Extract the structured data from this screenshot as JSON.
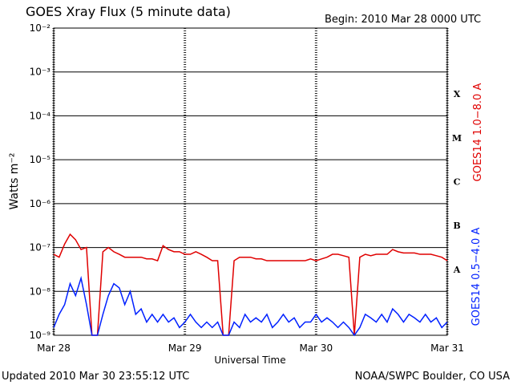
{
  "chart_data": {
    "type": "line",
    "title": "GOES Xray Flux (5 minute data)",
    "subtitle": "Begin:  2010 Mar 28 0000 UTC",
    "x_label": "Universal Time",
    "y_label": "Watts m⁻²",
    "footer_left": "Updated 2010 Mar 30 23:55:12 UTC",
    "footer_right": "NOAA/SWPC Boulder, CO USA",
    "flare_classes": [
      "A",
      "B",
      "C",
      "M",
      "X"
    ],
    "log_y": true,
    "grid": true,
    "xlim": [
      0,
      72
    ],
    "xticks": [
      {
        "value": 0,
        "label": "Mar 28"
      },
      {
        "value": 24,
        "label": "Mar 29"
      },
      {
        "value": 48,
        "label": "Mar 30"
      },
      {
        "value": 72,
        "label": "Mar 31"
      }
    ],
    "ylim": [
      1e-09,
      0.01
    ],
    "yticks": [
      {
        "value": 1e-09,
        "label": "10⁻⁹"
      },
      {
        "value": 1e-08,
        "label": "10⁻⁸"
      },
      {
        "value": 1e-07,
        "label": "10⁻⁷"
      },
      {
        "value": 1e-06,
        "label": "10⁻⁶"
      },
      {
        "value": 1e-05,
        "label": "10⁻⁵"
      },
      {
        "value": 0.0001,
        "label": "10⁻⁴"
      },
      {
        "value": 0.001,
        "label": "10⁻³"
      },
      {
        "value": 0.01,
        "label": "10⁻²"
      }
    ],
    "x": [
      0,
      1,
      2,
      3,
      4,
      5,
      6,
      7,
      8,
      9,
      10,
      11,
      12,
      13,
      14,
      15,
      16,
      17,
      18,
      19,
      20,
      21,
      22,
      23,
      24,
      25,
      26,
      27,
      28,
      29,
      30,
      31,
      32,
      33,
      34,
      35,
      36,
      37,
      38,
      39,
      40,
      41,
      42,
      43,
      44,
      45,
      46,
      47,
      48,
      49,
      50,
      51,
      52,
      53,
      54,
      55,
      56,
      57,
      58,
      59,
      60,
      61,
      62,
      63,
      64,
      65,
      66,
      67,
      68,
      69,
      70,
      71,
      72
    ],
    "series": [
      {
        "name": "GOES14 1.0−8.0 A",
        "color": "#e00000",
        "values": [
          7e-08,
          6e-08,
          1.2e-07,
          2e-07,
          1.5e-07,
          9e-08,
          1e-07,
          1e-09,
          1e-09,
          8e-08,
          1e-07,
          8e-08,
          7e-08,
          6e-08,
          6e-08,
          6e-08,
          6e-08,
          5.5e-08,
          5.5e-08,
          5e-08,
          1.1e-07,
          9e-08,
          8e-08,
          8e-08,
          7e-08,
          7e-08,
          8e-08,
          7e-08,
          6e-08,
          5e-08,
          5e-08,
          1e-09,
          1e-09,
          5e-08,
          6e-08,
          6e-08,
          6e-08,
          5.5e-08,
          5.5e-08,
          5e-08,
          5e-08,
          5e-08,
          5e-08,
          5e-08,
          5e-08,
          5e-08,
          5e-08,
          5.5e-08,
          5e-08,
          5.5e-08,
          6e-08,
          7e-08,
          7e-08,
          6.5e-08,
          6e-08,
          1e-09,
          6e-08,
          7e-08,
          6.5e-08,
          7e-08,
          7e-08,
          7e-08,
          9e-08,
          8e-08,
          7.5e-08,
          7.5e-08,
          7.5e-08,
          7e-08,
          7e-08,
          7e-08,
          6.5e-08,
          6e-08,
          5e-08
        ]
      },
      {
        "name": "GOES14 0.5−4.0 A",
        "color": "#0020ff",
        "values": [
          1.5e-09,
          3e-09,
          5e-09,
          1.5e-08,
          8e-09,
          2e-08,
          5e-09,
          1e-09,
          1e-09,
          3e-09,
          8e-09,
          1.5e-08,
          1.2e-08,
          5e-09,
          1e-08,
          3e-09,
          4e-09,
          2e-09,
          3e-09,
          2e-09,
          3e-09,
          2e-09,
          2.5e-09,
          1.5e-09,
          2e-09,
          3e-09,
          2e-09,
          1.5e-09,
          2e-09,
          1.5e-09,
          2e-09,
          1e-09,
          1e-09,
          2e-09,
          1.5e-09,
          3e-09,
          2e-09,
          2.5e-09,
          2e-09,
          3e-09,
          1.5e-09,
          2e-09,
          3e-09,
          2e-09,
          2.5e-09,
          1.5e-09,
          2e-09,
          2e-09,
          3e-09,
          2e-09,
          2.5e-09,
          2e-09,
          1.5e-09,
          2e-09,
          1.5e-09,
          1e-09,
          1.5e-09,
          3e-09,
          2.5e-09,
          2e-09,
          3e-09,
          2e-09,
          4e-09,
          3e-09,
          2e-09,
          3e-09,
          2.5e-09,
          2e-09,
          3e-09,
          2e-09,
          2.5e-09,
          1.5e-09,
          2e-09
        ]
      }
    ]
  }
}
